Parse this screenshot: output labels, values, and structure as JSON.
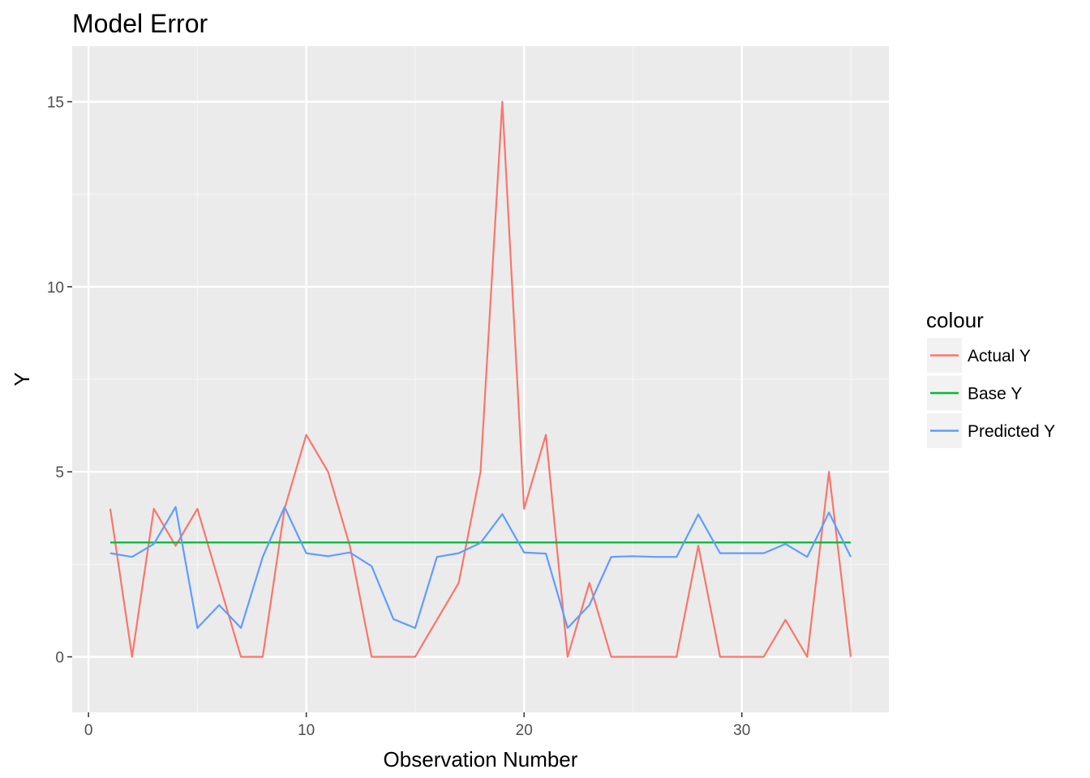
{
  "chart_data": {
    "type": "line",
    "title": "Model Error",
    "xlabel": "Observation Number",
    "ylabel": "Y",
    "xlim": [
      -0.75,
      36.75
    ],
    "ylim": [
      -1.5,
      16.5
    ],
    "xticks": [
      0,
      10,
      20,
      30
    ],
    "yticks": [
      0,
      5,
      10,
      15
    ],
    "xtick_labels": [
      "0",
      "10",
      "20",
      "30"
    ],
    "ytick_labels": [
      "0",
      "5",
      "10",
      "15"
    ],
    "grid": true,
    "legend": {
      "title": "colour",
      "position": "right",
      "entries": [
        "Actual Y",
        "Base Y",
        "Predicted Y"
      ]
    },
    "x": [
      1,
      2,
      3,
      4,
      5,
      6,
      7,
      8,
      9,
      10,
      11,
      12,
      13,
      14,
      15,
      16,
      17,
      18,
      19,
      20,
      21,
      22,
      23,
      24,
      25,
      26,
      27,
      28,
      29,
      30,
      31,
      32,
      33,
      34,
      35
    ],
    "series": [
      {
        "name": "Actual Y",
        "color": "#F8766D",
        "values": [
          4,
          0,
          4,
          3,
          4,
          2,
          0,
          0,
          4,
          6,
          5,
          3,
          0,
          0,
          0,
          1,
          2,
          5,
          15,
          4,
          6,
          0,
          2,
          0,
          0,
          0,
          0,
          3,
          0,
          0,
          0,
          1,
          0,
          5,
          0
        ]
      },
      {
        "name": "Base Y",
        "color": "#00BA38",
        "values": [
          3.09,
          3.09,
          3.09,
          3.09,
          3.09,
          3.09,
          3.09,
          3.09,
          3.09,
          3.09,
          3.09,
          3.09,
          3.09,
          3.09,
          3.09,
          3.09,
          3.09,
          3.09,
          3.09,
          3.09,
          3.09,
          3.09,
          3.09,
          3.09,
          3.09,
          3.09,
          3.09,
          3.09,
          3.09,
          3.09,
          3.09,
          3.09,
          3.09,
          3.09,
          3.09
        ]
      },
      {
        "name": "Predicted Y",
        "color": "#619CFF",
        "values": [
          2.8,
          2.7,
          3.05,
          4.05,
          0.78,
          1.4,
          0.78,
          2.7,
          4.05,
          2.8,
          2.72,
          2.82,
          2.45,
          1.02,
          0.78,
          2.7,
          2.8,
          3.08,
          3.86,
          2.82,
          2.79,
          0.78,
          1.4,
          2.7,
          2.72,
          2.7,
          2.7,
          3.85,
          2.8,
          2.8,
          2.8,
          3.05,
          2.7,
          3.9,
          2.7
        ]
      }
    ]
  }
}
